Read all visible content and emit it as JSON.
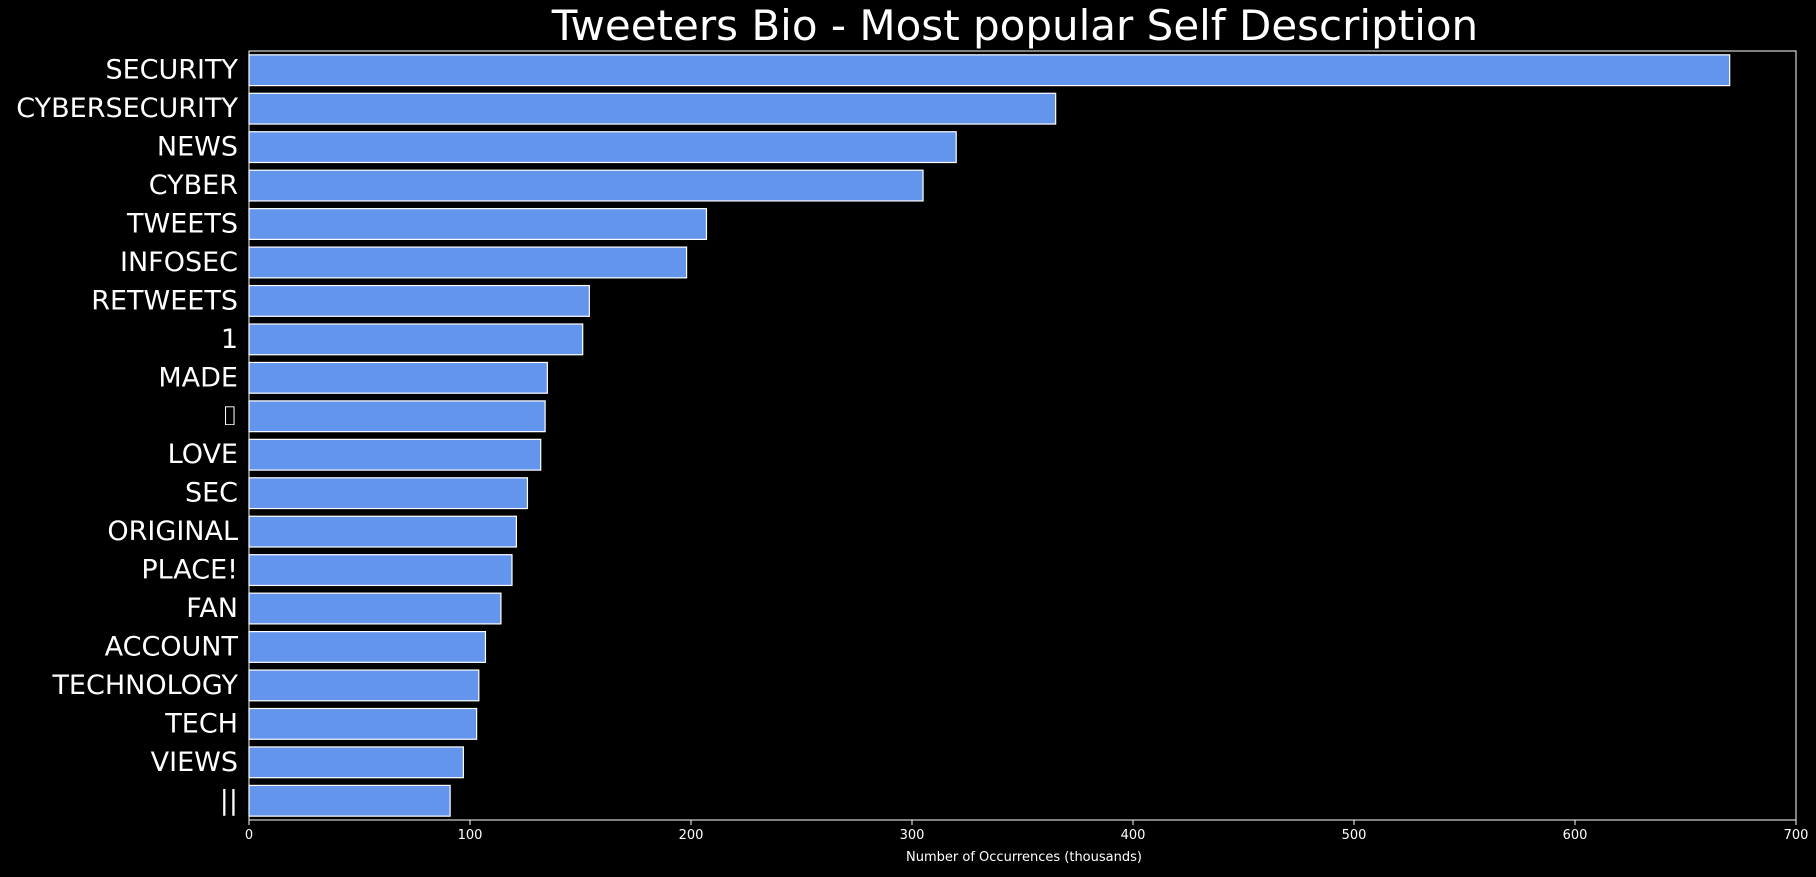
{
  "colors": {
    "background": "#000000",
    "bar_fill": "#6495ED",
    "bar_edge": "#FFFFFF",
    "text": "#FFFFFF",
    "axis": "#FFFFFF"
  },
  "chart_data": {
    "type": "bar",
    "orientation": "horizontal",
    "title": "Tweeters Bio - Most popular Self Description",
    "xlabel": "Number of Occurrences (thousands)",
    "ylabel": "",
    "xlim": [
      0,
      700
    ],
    "xticks": [
      0,
      100,
      200,
      300,
      400,
      500,
      600,
      700
    ],
    "grid": false,
    "categories": [
      "SECURITY",
      "CYBERSECURITY",
      "NEWS",
      "CYBER",
      "TWEETS",
      "INFOSEC",
      "RETWEETS",
      "1",
      "MADE",
      "⌷",
      "LOVE",
      "SEC",
      "ORIGINAL",
      "PLACE!",
      "FAN",
      "ACCOUNT",
      "TECHNOLOGY",
      "TECH",
      "VIEWS",
      "||"
    ],
    "values": [
      670,
      365,
      320,
      305,
      207,
      198,
      154,
      151,
      135,
      134,
      132,
      126,
      121,
      119,
      114,
      107,
      104,
      103,
      97,
      91
    ]
  }
}
